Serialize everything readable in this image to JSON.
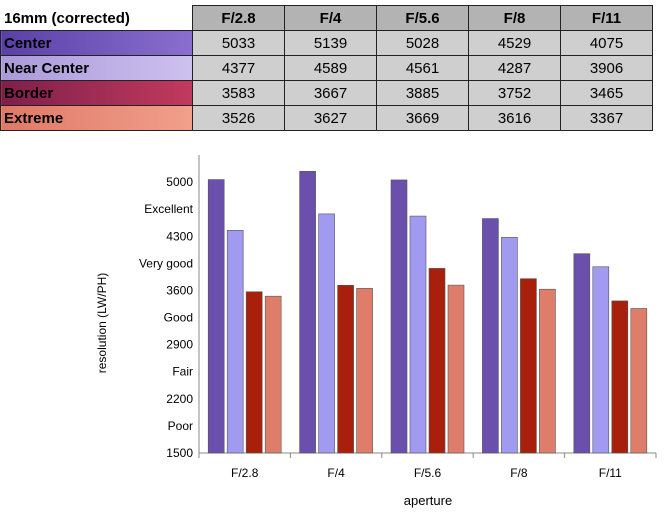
{
  "table": {
    "title": "16mm (corrected)",
    "columns": [
      "F/2.8",
      "F/4",
      "F/5.6",
      "F/8",
      "F/11"
    ],
    "rows": [
      {
        "label": "Center",
        "values": [
          "5033",
          "5139",
          "5028",
          "4529",
          "4075"
        ],
        "gradient": [
          "#5a3fa6",
          "#8a6fd0"
        ]
      },
      {
        "label": "Near Center",
        "values": [
          "4377",
          "4589",
          "4561",
          "4287",
          "3906"
        ],
        "gradient": [
          "#a99ad8",
          "#cdc1ef"
        ]
      },
      {
        "label": "Border",
        "values": [
          "3583",
          "3667",
          "3885",
          "3752",
          "3465"
        ],
        "gradient": [
          "#7e1f4a",
          "#c23a5e"
        ]
      },
      {
        "label": "Extreme",
        "values": [
          "3526",
          "3627",
          "3669",
          "3616",
          "3367"
        ],
        "gradient": [
          "#e07866",
          "#f0a08c"
        ]
      }
    ]
  },
  "chart_data": {
    "type": "bar",
    "categories": [
      "F/2.8",
      "F/4",
      "F/5.6",
      "F/8",
      "F/11"
    ],
    "series": [
      {
        "name": "Center",
        "values": [
          5033,
          5139,
          5028,
          4529,
          4075
        ],
        "color": "#6a4fac"
      },
      {
        "name": "Near Center",
        "values": [
          4377,
          4589,
          4561,
          4287,
          3906
        ],
        "color": "#a09af0"
      },
      {
        "name": "Border",
        "values": [
          3583,
          3667,
          3885,
          3752,
          3465
        ],
        "color": "#a8200c"
      },
      {
        "name": "Extreme",
        "values": [
          3526,
          3627,
          3669,
          3616,
          3367
        ],
        "color": "#de7e6a"
      }
    ],
    "xlabel": "aperture",
    "ylabel": "resolution (LW/PH)",
    "ylim": [
      1500,
      5350
    ],
    "yticks": [
      1500,
      2200,
      2900,
      3600,
      4300,
      5000
    ],
    "quality_labels": [
      {
        "value": 1850,
        "label": "Poor"
      },
      {
        "value": 2550,
        "label": "Fair"
      },
      {
        "value": 3250,
        "label": "Good"
      },
      {
        "value": 3950,
        "label": "Very good"
      },
      {
        "value": 4650,
        "label": "Excellent"
      }
    ],
    "grid": false,
    "legend": "none"
  }
}
